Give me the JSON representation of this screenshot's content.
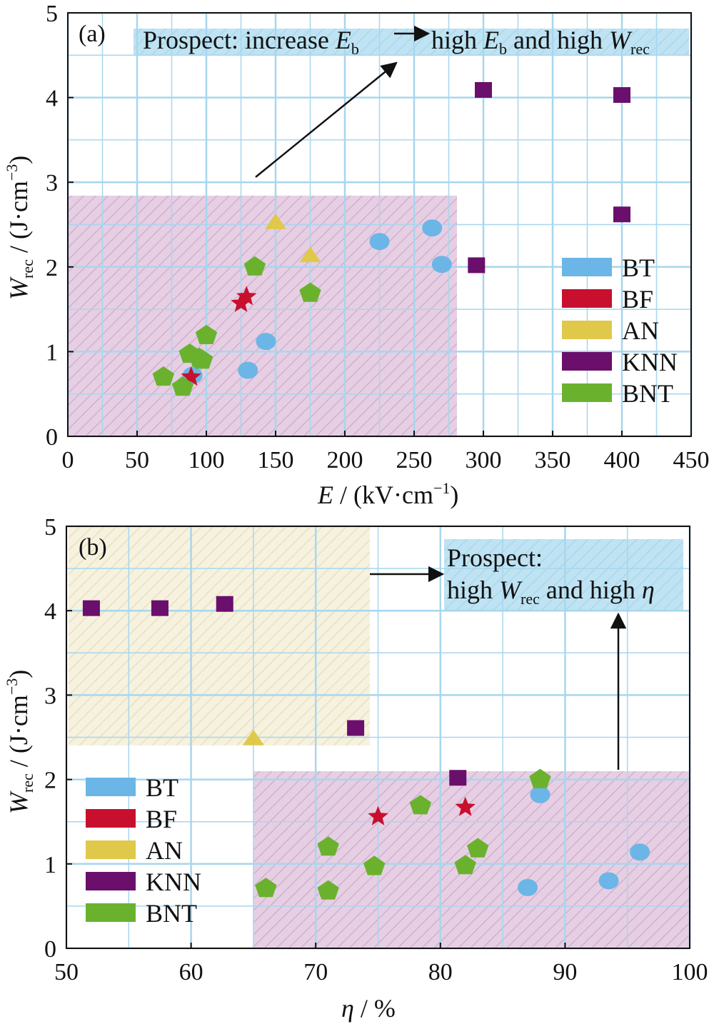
{
  "colors": {
    "BT": "#6bb6e6",
    "BF": "#c8102e",
    "AN": "#e0c84a",
    "KNN": "#6a0f6c",
    "BNT": "#6ab22e",
    "grid": "#a8d6ee"
  },
  "chart_data": [
    {
      "type": "scatter",
      "panel_label": "(a)",
      "xlabel_main": "E",
      "xlabel_unit": " / (kV·cm",
      "xlabel_exp": "−1",
      "xlabel_close": ")",
      "ylabel_main": "W",
      "ylabel_sub": "rec",
      "ylabel_unit": " / (J·cm",
      "ylabel_exp": "−3",
      "ylabel_close": ")",
      "xlim": [
        0,
        450
      ],
      "ylim": [
        0,
        5
      ],
      "xticks": [
        "0",
        "50",
        "100",
        "150",
        "200",
        "250",
        "300",
        "350",
        "400",
        "450"
      ],
      "yticks": [
        "0",
        "1",
        "2",
        "3",
        "4",
        "5"
      ],
      "grid": true,
      "legend_position": "bottom-right",
      "prospect": {
        "prefix": "Prospect: increase ",
        "Eb_main": "E",
        "Eb_sub": "b",
        "mid": " high ",
        "Eb2_main": "E",
        "Eb2_sub": "b",
        "and": " and high ",
        "W_main": "W",
        "W_sub": "rec"
      },
      "series": [
        {
          "name": "BT",
          "points": [
            [
              90,
              0.72
            ],
            [
              130,
              0.78
            ],
            [
              143,
              1.12
            ],
            [
              225,
              2.3
            ],
            [
              263,
              2.46
            ],
            [
              270,
              2.03
            ]
          ]
        },
        {
          "name": "BF",
          "points": [
            [
              89,
              0.7
            ],
            [
              125,
              1.57
            ],
            [
              129,
              1.65
            ]
          ]
        },
        {
          "name": "AN",
          "points": [
            [
              150,
              2.52
            ],
            [
              175,
              2.13
            ]
          ]
        },
        {
          "name": "KNN",
          "points": [
            [
              295,
              2.02
            ],
            [
              300,
              4.09
            ],
            [
              400,
              2.62
            ],
            [
              400,
              4.03
            ]
          ]
        },
        {
          "name": "BNT",
          "points": [
            [
              69,
              0.7
            ],
            [
              83,
              0.58
            ],
            [
              88,
              0.97
            ],
            [
              95,
              0.92
            ],
            [
              97,
              0.9
            ],
            [
              100,
              1.19
            ],
            [
              135,
              2.0
            ],
            [
              175,
              1.69
            ]
          ]
        }
      ]
    },
    {
      "type": "scatter",
      "panel_label": "(b)",
      "xlabel_main": "η",
      "xlabel_unit": " / %",
      "ylabel_main": "W",
      "ylabel_sub": "rec",
      "ylabel_unit": " / (J·cm",
      "ylabel_exp": "−3",
      "ylabel_close": ")",
      "xlim": [
        50,
        100
      ],
      "ylim": [
        0,
        5
      ],
      "xticks": [
        "50",
        "60",
        "70",
        "80",
        "90",
        "100"
      ],
      "yticks": [
        "0",
        "1",
        "2",
        "3",
        "4",
        "5"
      ],
      "grid": true,
      "legend_position": "bottom-left",
      "prospect": {
        "line1": "Prospect:",
        "line2_prefix": "high ",
        "W_main": "W",
        "W_sub": "rec",
        "line2_mid": " and high ",
        "eta": "η"
      },
      "series": [
        {
          "name": "BT",
          "points": [
            [
              87,
              0.72
            ],
            [
              88,
              1.82
            ],
            [
              93.5,
              0.8
            ],
            [
              96,
              1.14
            ]
          ]
        },
        {
          "name": "BF",
          "points": [
            [
              75,
              1.56
            ],
            [
              82,
              1.67
            ]
          ]
        },
        {
          "name": "AN",
          "points": [
            [
              65,
              2.48
            ]
          ]
        },
        {
          "name": "KNN",
          "points": [
            [
              52,
              4.03
            ],
            [
              57.5,
              4.03
            ],
            [
              62.7,
              4.08
            ],
            [
              73.2,
              2.61
            ],
            [
              81.4,
              2.02
            ]
          ]
        },
        {
          "name": "BNT",
          "points": [
            [
              66,
              0.71
            ],
            [
              71,
              0.68
            ],
            [
              71,
              1.2
            ],
            [
              74.7,
              0.97
            ],
            [
              78.4,
              1.69
            ],
            [
              82,
              0.98
            ],
            [
              83,
              1.18
            ],
            [
              88,
              2.0
            ]
          ]
        }
      ]
    }
  ]
}
